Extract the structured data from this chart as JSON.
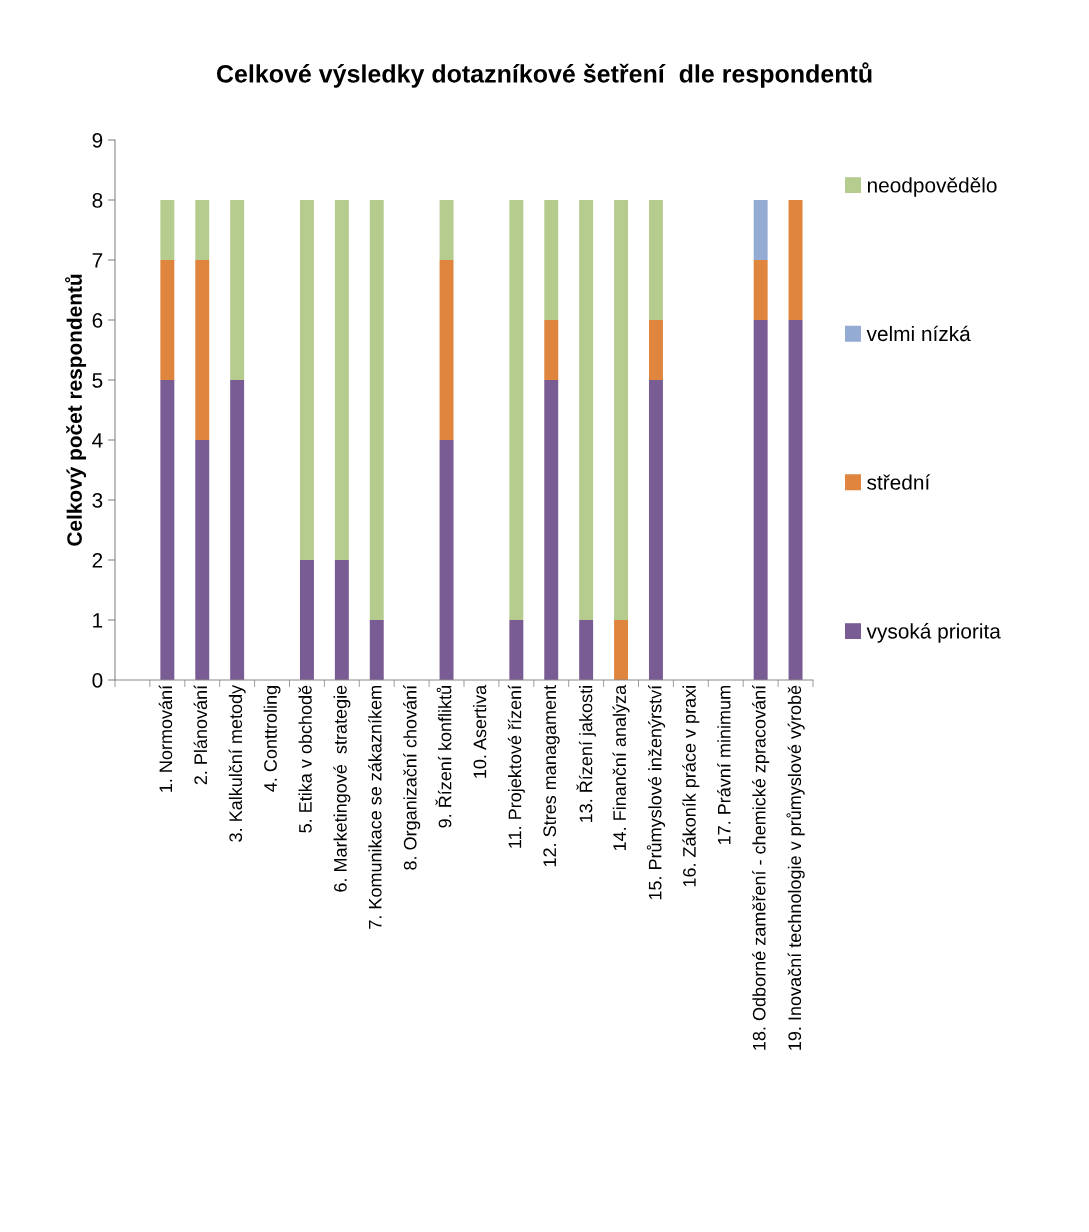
{
  "chart_data": {
    "type": "bar",
    "stacked": true,
    "title": "Celkové výsledky dotazníkové šetření  dle respondentů",
    "ylabel": "Celkový počet respondentů",
    "categories": [
      null,
      "1. Normování",
      "2. Plánování",
      "3. Kalkulční metody",
      "4. Conttroling",
      "5. Etika v obchodě",
      "6. Marketingové  strategie",
      "7. Komunikace se zákazníkem",
      "8. Organizační chování",
      "9. Řízení konfliktů",
      "10. Asertiva",
      "11. Projektové řízení",
      "12. Stres managament",
      "13. Řízení jakosti",
      "14. Finanční analýza",
      "15. Průmyslové inženýrství",
      "16. Zákoník práce v praxi",
      "17. Právní minimum",
      "18. Odborné zaměření - chemické zpracování",
      "19. Inovační technologie v průmyslové výrobě"
    ],
    "series": [
      {
        "name": "vysoká priorita",
        "color": "#7a5c95",
        "values": [
          null,
          5,
          4,
          5,
          null,
          2,
          2,
          1,
          null,
          4,
          null,
          1,
          5,
          1,
          null,
          5,
          null,
          null,
          6,
          6
        ]
      },
      {
        "name": "střední",
        "color": "#e0853e",
        "values": [
          null,
          2,
          3,
          null,
          null,
          null,
          null,
          null,
          null,
          3,
          null,
          null,
          1,
          null,
          1,
          1,
          null,
          null,
          1,
          2
        ]
      },
      {
        "name": "velmi nízká",
        "color": "#94abd4",
        "values": [
          null,
          null,
          null,
          null,
          null,
          null,
          null,
          null,
          null,
          null,
          null,
          null,
          null,
          null,
          null,
          null,
          null,
          null,
          1,
          null
        ]
      },
      {
        "name": "neodpovědělo",
        "color": "#b5cc8e",
        "values": [
          null,
          1,
          1,
          3,
          null,
          6,
          6,
          7,
          null,
          1,
          null,
          7,
          2,
          7,
          7,
          2,
          null,
          null,
          null,
          null
        ]
      }
    ],
    "ylim": [
      0,
      9
    ],
    "yticks": [
      0,
      1,
      2,
      3,
      4,
      5,
      6,
      7,
      8,
      9
    ],
    "grid": false,
    "legend": "right"
  }
}
